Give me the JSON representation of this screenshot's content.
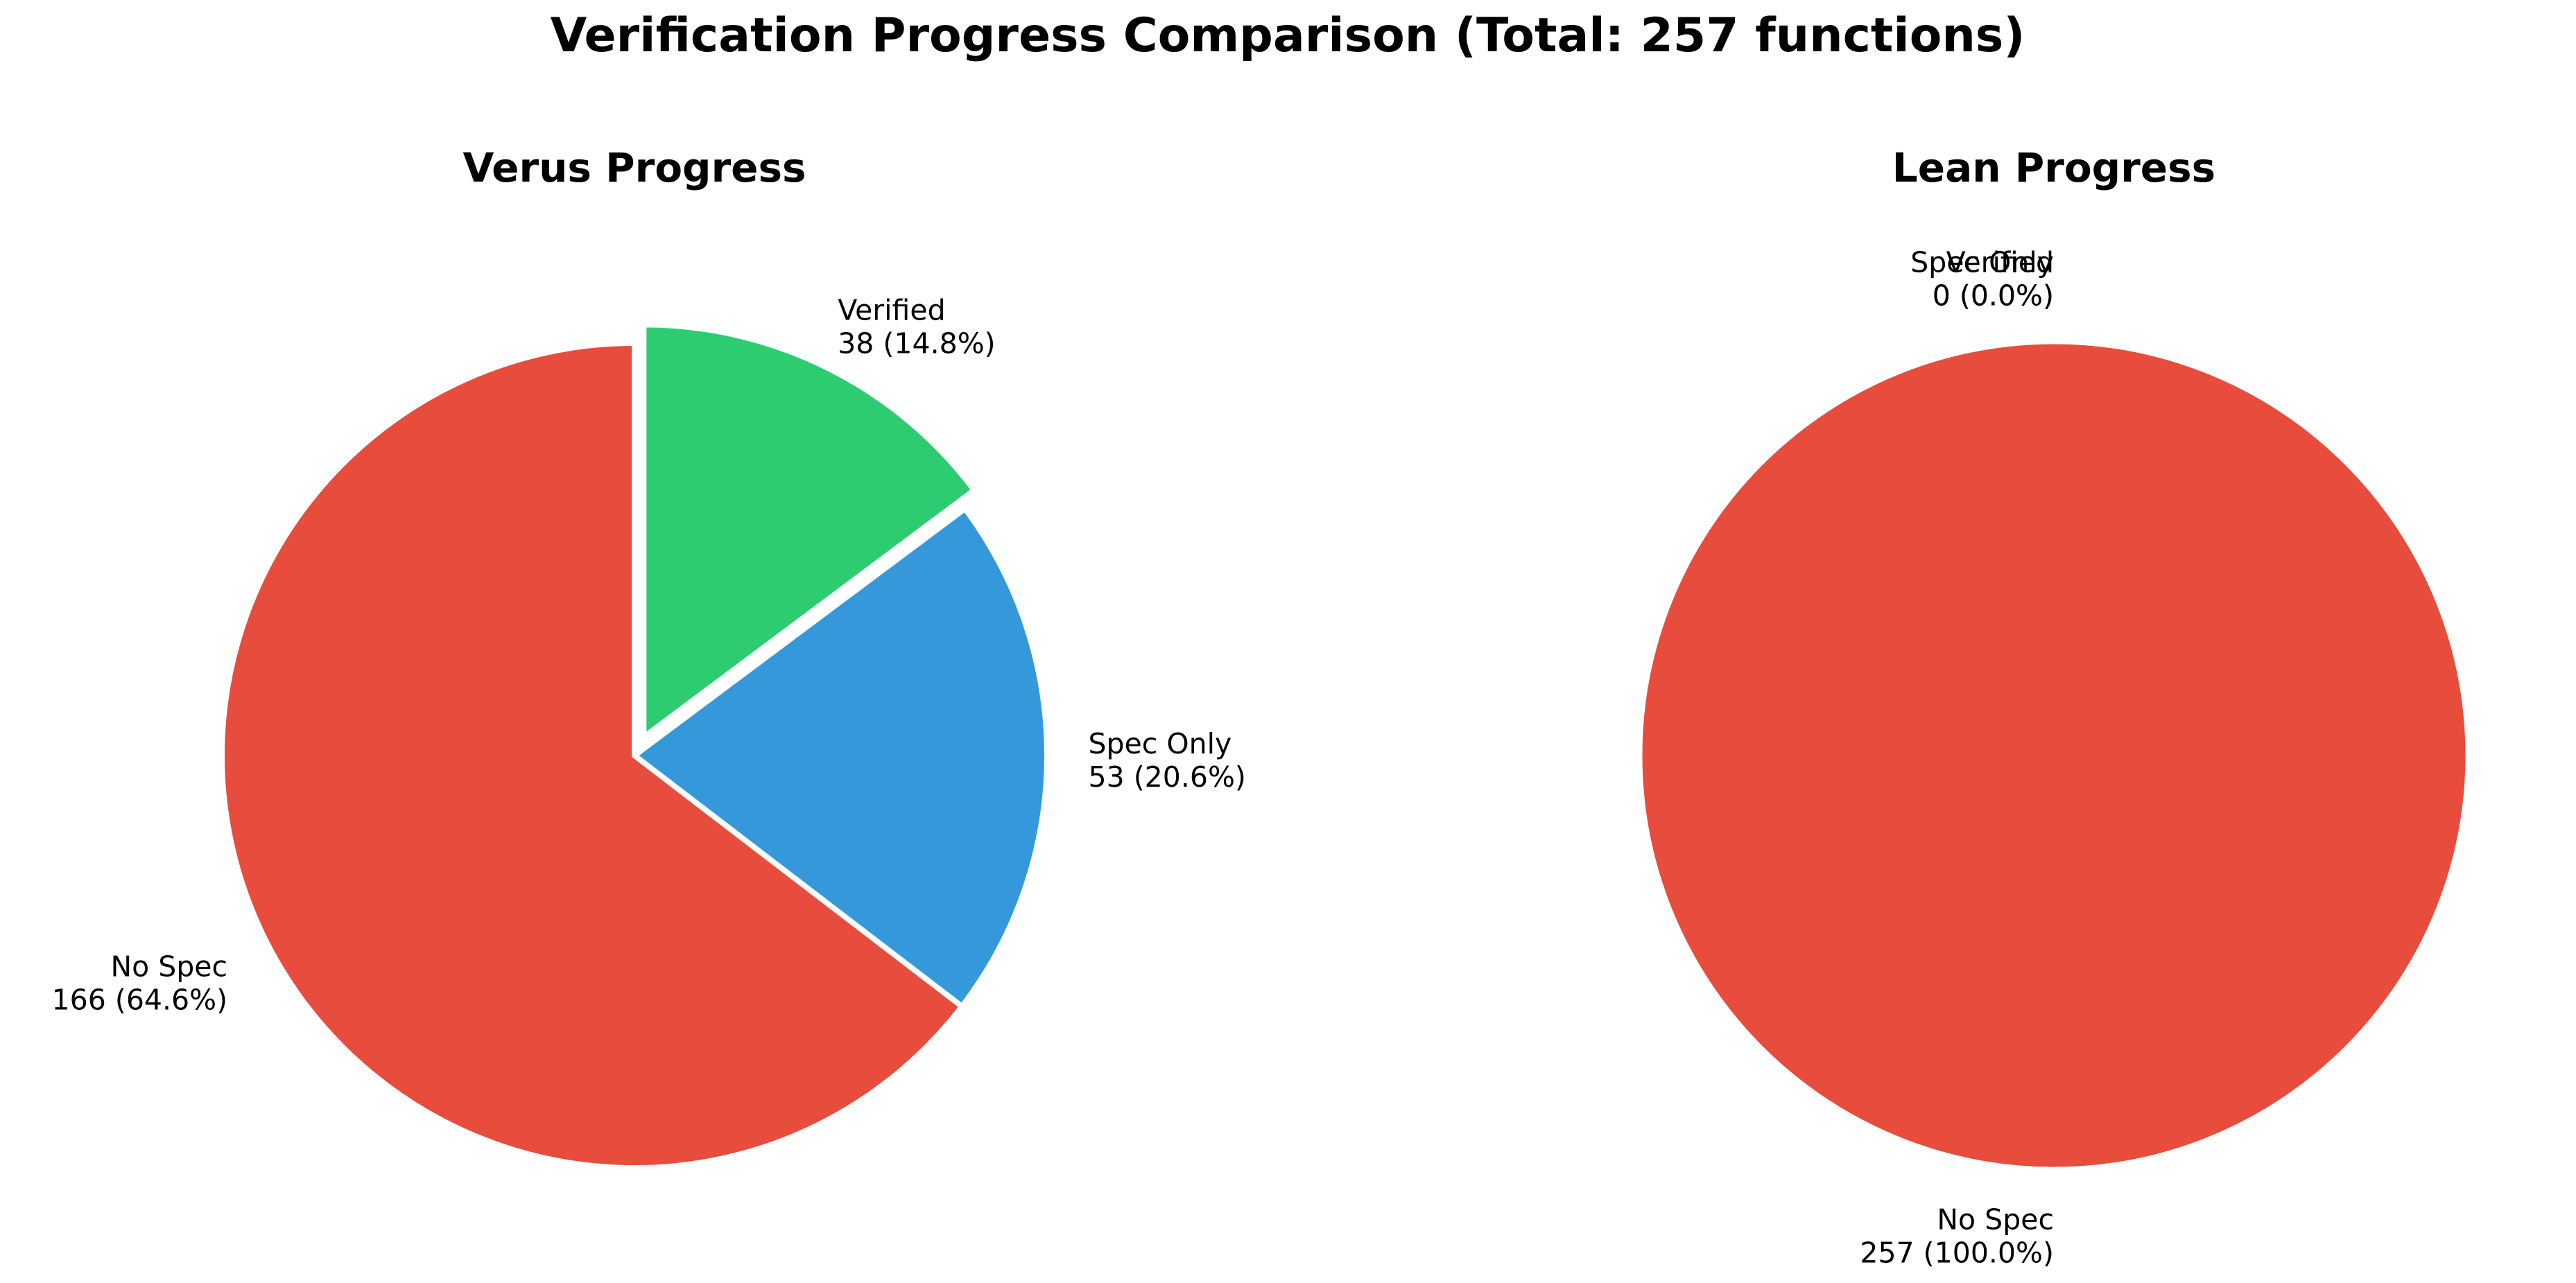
{
  "chart_data": {
    "suptitle": "Verification Progress Comparison (Total: 257 functions)",
    "total": 257,
    "charts": [
      {
        "type": "pie",
        "title": "Verus Progress",
        "slices": [
          {
            "name": "Verified",
            "value": 38,
            "percent": "14.8%",
            "color": "#2ecc71",
            "explode": true
          },
          {
            "name": "Spec Only",
            "value": 53,
            "percent": "20.6%",
            "color": "#3498db",
            "explode": false
          },
          {
            "name": "No Spec",
            "value": 166,
            "percent": "64.6%",
            "color": "#e74c3c",
            "explode": false
          }
        ]
      },
      {
        "type": "pie",
        "title": "Lean Progress",
        "slices": [
          {
            "name": "Verified",
            "value": 0,
            "percent": "0.0%",
            "color": "#2ecc71",
            "explode": true
          },
          {
            "name": "Spec Only",
            "value": 0,
            "percent": "0.0%",
            "color": "#3498db",
            "explode": false
          },
          {
            "name": "No Spec",
            "value": 257,
            "percent": "100.0%",
            "color": "#e74c3c",
            "explode": false
          }
        ]
      }
    ]
  }
}
